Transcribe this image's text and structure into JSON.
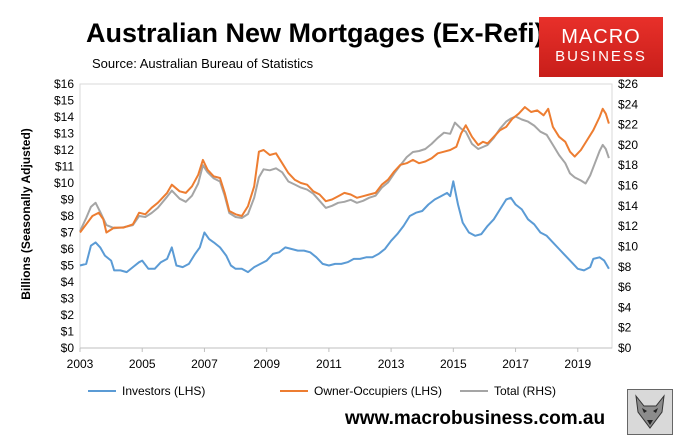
{
  "title": "Australian New Mortgages (Ex-Refi)",
  "subtitle": "Source: Australian Bureau of Statistics",
  "logo": {
    "line1": "MACRO",
    "line2": "BUSINESS"
  },
  "website": "www.macrobusiness.com.au",
  "mascot_icon": "wolf-logo-icon",
  "chart_data": {
    "type": "line",
    "title": "Australian New Mortgages (Ex-Refi)",
    "ylabel": "Billions (Seasonally Adjusted)",
    "x_ticks": [
      "2003",
      "2005",
      "2007",
      "2009",
      "2011",
      "2013",
      "2015",
      "2017",
      "2019"
    ],
    "y_ticks_left": [
      "$0",
      "$1",
      "$2",
      "$3",
      "$4",
      "$5",
      "$6",
      "$7",
      "$8",
      "$9",
      "$10",
      "$11",
      "$12",
      "$13",
      "$14",
      "$15",
      "$16"
    ],
    "y_ticks_right": [
      "$0",
      "$2",
      "$4",
      "$6",
      "$8",
      "$10",
      "$12",
      "$14",
      "$16",
      "$18",
      "$20",
      "$22",
      "$24",
      "$26"
    ],
    "xlim": [
      2003,
      2020.1
    ],
    "ylim_left": [
      0,
      16
    ],
    "ylim_right": [
      0,
      26
    ],
    "grid": false,
    "legend_position": "bottom",
    "series": [
      {
        "name": "Investors (LHS)",
        "axis": "left",
        "color": "#5b9bd5",
        "points": [
          [
            2003,
            5.0
          ],
          [
            2003.2,
            5.1
          ],
          [
            2003.35,
            6.2
          ],
          [
            2003.5,
            6.4
          ],
          [
            2003.65,
            6.1
          ],
          [
            2003.8,
            5.6
          ],
          [
            2004,
            5.3
          ],
          [
            2004.1,
            4.7
          ],
          [
            2004.3,
            4.7
          ],
          [
            2004.5,
            4.6
          ],
          [
            2004.7,
            4.9
          ],
          [
            2004.9,
            5.2
          ],
          [
            2005,
            5.3
          ],
          [
            2005.2,
            4.8
          ],
          [
            2005.4,
            4.8
          ],
          [
            2005.6,
            5.2
          ],
          [
            2005.8,
            5.4
          ],
          [
            2005.95,
            6.1
          ],
          [
            2006.1,
            5.0
          ],
          [
            2006.3,
            4.9
          ],
          [
            2006.5,
            5.1
          ],
          [
            2006.7,
            5.7
          ],
          [
            2006.85,
            6.1
          ],
          [
            2007,
            7.0
          ],
          [
            2007.15,
            6.6
          ],
          [
            2007.3,
            6.4
          ],
          [
            2007.5,
            6.1
          ],
          [
            2007.7,
            5.6
          ],
          [
            2007.85,
            5.0
          ],
          [
            2008,
            4.8
          ],
          [
            2008.2,
            4.8
          ],
          [
            2008.4,
            4.6
          ],
          [
            2008.6,
            4.9
          ],
          [
            2008.8,
            5.1
          ],
          [
            2009,
            5.3
          ],
          [
            2009.2,
            5.7
          ],
          [
            2009.4,
            5.8
          ],
          [
            2009.6,
            6.1
          ],
          [
            2009.8,
            6.0
          ],
          [
            2010,
            5.9
          ],
          [
            2010.2,
            5.9
          ],
          [
            2010.4,
            5.8
          ],
          [
            2010.6,
            5.5
          ],
          [
            2010.8,
            5.1
          ],
          [
            2011,
            5.0
          ],
          [
            2011.2,
            5.1
          ],
          [
            2011.4,
            5.1
          ],
          [
            2011.6,
            5.2
          ],
          [
            2011.8,
            5.4
          ],
          [
            2012,
            5.4
          ],
          [
            2012.2,
            5.5
          ],
          [
            2012.4,
            5.5
          ],
          [
            2012.6,
            5.7
          ],
          [
            2012.8,
            6.0
          ],
          [
            2013,
            6.5
          ],
          [
            2013.2,
            6.9
          ],
          [
            2013.4,
            7.4
          ],
          [
            2013.6,
            8.0
          ],
          [
            2013.8,
            8.2
          ],
          [
            2014,
            8.3
          ],
          [
            2014.2,
            8.7
          ],
          [
            2014.4,
            9.0
          ],
          [
            2014.6,
            9.2
          ],
          [
            2014.8,
            9.4
          ],
          [
            2014.9,
            9.2
          ],
          [
            2015,
            10.1
          ],
          [
            2015.15,
            8.7
          ],
          [
            2015.3,
            7.6
          ],
          [
            2015.5,
            7.0
          ],
          [
            2015.7,
            6.8
          ],
          [
            2015.9,
            6.9
          ],
          [
            2016.1,
            7.4
          ],
          [
            2016.3,
            7.8
          ],
          [
            2016.5,
            8.4
          ],
          [
            2016.7,
            9.0
          ],
          [
            2016.85,
            9.1
          ],
          [
            2017,
            8.7
          ],
          [
            2017.2,
            8.4
          ],
          [
            2017.4,
            7.8
          ],
          [
            2017.6,
            7.5
          ],
          [
            2017.8,
            7.0
          ],
          [
            2018,
            6.8
          ],
          [
            2018.2,
            6.4
          ],
          [
            2018.4,
            6.0
          ],
          [
            2018.6,
            5.6
          ],
          [
            2018.8,
            5.2
          ],
          [
            2019,
            4.8
          ],
          [
            2019.2,
            4.7
          ],
          [
            2019.4,
            4.9
          ],
          [
            2019.5,
            5.4
          ],
          [
            2019.7,
            5.5
          ],
          [
            2019.85,
            5.3
          ],
          [
            2020,
            4.8
          ]
        ]
      },
      {
        "name": "Owner-Occupiers (LHS)",
        "axis": "left",
        "color": "#ed7d31",
        "points": [
          [
            2003,
            7.0
          ],
          [
            2003.2,
            7.5
          ],
          [
            2003.4,
            8.0
          ],
          [
            2003.6,
            8.2
          ],
          [
            2003.75,
            7.8
          ],
          [
            2003.85,
            7.0
          ],
          [
            2004.1,
            7.3
          ],
          [
            2004.4,
            7.3
          ],
          [
            2004.7,
            7.5
          ],
          [
            2004.9,
            8.2
          ],
          [
            2005.1,
            8.1
          ],
          [
            2005.3,
            8.5
          ],
          [
            2005.5,
            8.8
          ],
          [
            2005.8,
            9.4
          ],
          [
            2005.95,
            9.9
          ],
          [
            2006.2,
            9.5
          ],
          [
            2006.4,
            9.4
          ],
          [
            2006.6,
            9.8
          ],
          [
            2006.8,
            10.5
          ],
          [
            2006.95,
            11.4
          ],
          [
            2007.1,
            10.8
          ],
          [
            2007.3,
            10.4
          ],
          [
            2007.5,
            10.3
          ],
          [
            2007.65,
            9.4
          ],
          [
            2007.8,
            8.3
          ],
          [
            2008,
            8.1
          ],
          [
            2008.2,
            8.0
          ],
          [
            2008.4,
            8.6
          ],
          [
            2008.6,
            9.8
          ],
          [
            2008.75,
            11.9
          ],
          [
            2008.9,
            12.0
          ],
          [
            2009.1,
            11.7
          ],
          [
            2009.3,
            11.8
          ],
          [
            2009.5,
            11.2
          ],
          [
            2009.7,
            10.6
          ],
          [
            2009.9,
            10.2
          ],
          [
            2010.1,
            10.0
          ],
          [
            2010.3,
            9.9
          ],
          [
            2010.5,
            9.5
          ],
          [
            2010.7,
            9.3
          ],
          [
            2010.9,
            8.9
          ],
          [
            2011.1,
            9.0
          ],
          [
            2011.3,
            9.2
          ],
          [
            2011.5,
            9.4
          ],
          [
            2011.7,
            9.3
          ],
          [
            2011.9,
            9.1
          ],
          [
            2012.1,
            9.2
          ],
          [
            2012.3,
            9.3
          ],
          [
            2012.5,
            9.4
          ],
          [
            2012.7,
            9.9
          ],
          [
            2012.9,
            10.2
          ],
          [
            2013.1,
            10.7
          ],
          [
            2013.3,
            11.1
          ],
          [
            2013.5,
            11.2
          ],
          [
            2013.7,
            11.4
          ],
          [
            2013.9,
            11.2
          ],
          [
            2014.1,
            11.3
          ],
          [
            2014.3,
            11.5
          ],
          [
            2014.5,
            11.8
          ],
          [
            2014.7,
            11.9
          ],
          [
            2014.9,
            12.0
          ],
          [
            2015.1,
            12.2
          ],
          [
            2015.25,
            13.0
          ],
          [
            2015.4,
            13.5
          ],
          [
            2015.6,
            12.8
          ],
          [
            2015.8,
            12.3
          ],
          [
            2015.95,
            12.5
          ],
          [
            2016.1,
            12.4
          ],
          [
            2016.3,
            12.8
          ],
          [
            2016.5,
            13.2
          ],
          [
            2016.7,
            13.4
          ],
          [
            2016.9,
            13.9
          ],
          [
            2017.1,
            14.2
          ],
          [
            2017.3,
            14.6
          ],
          [
            2017.5,
            14.3
          ],
          [
            2017.7,
            14.4
          ],
          [
            2017.9,
            14.1
          ],
          [
            2018.05,
            14.5
          ],
          [
            2018.2,
            13.4
          ],
          [
            2018.4,
            12.8
          ],
          [
            2018.6,
            12.5
          ],
          [
            2018.75,
            11.9
          ],
          [
            2018.9,
            11.6
          ],
          [
            2019.1,
            12.0
          ],
          [
            2019.3,
            12.6
          ],
          [
            2019.5,
            13.2
          ],
          [
            2019.7,
            14.0
          ],
          [
            2019.8,
            14.5
          ],
          [
            2019.9,
            14.2
          ],
          [
            2020,
            13.6
          ]
        ]
      },
      {
        "name": "Total (RHS)",
        "axis": "right",
        "color": "#a5a5a5",
        "points": [
          [
            2003,
            11.5
          ],
          [
            2003.2,
            12.8
          ],
          [
            2003.35,
            13.9
          ],
          [
            2003.5,
            14.3
          ],
          [
            2003.65,
            13.4
          ],
          [
            2003.85,
            12.1
          ],
          [
            2004.1,
            11.8
          ],
          [
            2004.4,
            11.9
          ],
          [
            2004.7,
            12.1
          ],
          [
            2004.9,
            13.0
          ],
          [
            2005.1,
            12.9
          ],
          [
            2005.3,
            13.3
          ],
          [
            2005.5,
            13.8
          ],
          [
            2005.8,
            14.9
          ],
          [
            2005.95,
            15.5
          ],
          [
            2006.2,
            14.7
          ],
          [
            2006.4,
            14.4
          ],
          [
            2006.6,
            15.0
          ],
          [
            2006.8,
            16.2
          ],
          [
            2006.95,
            18.0
          ],
          [
            2007.1,
            17.3
          ],
          [
            2007.3,
            16.7
          ],
          [
            2007.5,
            16.4
          ],
          [
            2007.65,
            15.0
          ],
          [
            2007.8,
            13.3
          ],
          [
            2008,
            12.9
          ],
          [
            2008.2,
            12.8
          ],
          [
            2008.4,
            13.2
          ],
          [
            2008.6,
            14.8
          ],
          [
            2008.75,
            16.8
          ],
          [
            2008.9,
            17.6
          ],
          [
            2009.1,
            17.5
          ],
          [
            2009.3,
            17.7
          ],
          [
            2009.5,
            17.3
          ],
          [
            2009.7,
            16.4
          ],
          [
            2009.9,
            16.1
          ],
          [
            2010.1,
            15.8
          ],
          [
            2010.3,
            15.6
          ],
          [
            2010.5,
            15.2
          ],
          [
            2010.7,
            14.5
          ],
          [
            2010.9,
            13.8
          ],
          [
            2011.1,
            14.0
          ],
          [
            2011.3,
            14.3
          ],
          [
            2011.5,
            14.4
          ],
          [
            2011.7,
            14.6
          ],
          [
            2011.9,
            14.3
          ],
          [
            2012.1,
            14.5
          ],
          [
            2012.3,
            14.8
          ],
          [
            2012.5,
            15.0
          ],
          [
            2012.7,
            15.8
          ],
          [
            2012.9,
            16.3
          ],
          [
            2013.1,
            17.2
          ],
          [
            2013.3,
            18.0
          ],
          [
            2013.5,
            18.8
          ],
          [
            2013.7,
            19.3
          ],
          [
            2013.9,
            19.4
          ],
          [
            2014.1,
            19.6
          ],
          [
            2014.3,
            20.1
          ],
          [
            2014.5,
            20.7
          ],
          [
            2014.7,
            21.2
          ],
          [
            2014.9,
            21.1
          ],
          [
            2015.05,
            22.2
          ],
          [
            2015.25,
            21.6
          ],
          [
            2015.4,
            21.3
          ],
          [
            2015.6,
            20.1
          ],
          [
            2015.8,
            19.6
          ],
          [
            2015.95,
            19.8
          ],
          [
            2016.1,
            20.0
          ],
          [
            2016.3,
            20.7
          ],
          [
            2016.5,
            21.6
          ],
          [
            2016.7,
            22.3
          ],
          [
            2016.85,
            22.6
          ],
          [
            2017,
            22.8
          ],
          [
            2017.2,
            22.5
          ],
          [
            2017.4,
            22.3
          ],
          [
            2017.6,
            21.9
          ],
          [
            2017.8,
            21.3
          ],
          [
            2018,
            21.0
          ],
          [
            2018.2,
            20.0
          ],
          [
            2018.4,
            19.0
          ],
          [
            2018.6,
            18.2
          ],
          [
            2018.75,
            17.2
          ],
          [
            2018.9,
            16.8
          ],
          [
            2019.1,
            16.5
          ],
          [
            2019.25,
            16.2
          ],
          [
            2019.4,
            17.0
          ],
          [
            2019.55,
            18.2
          ],
          [
            2019.7,
            19.4
          ],
          [
            2019.8,
            20.0
          ],
          [
            2019.9,
            19.6
          ],
          [
            2020,
            18.7
          ]
        ]
      }
    ]
  }
}
